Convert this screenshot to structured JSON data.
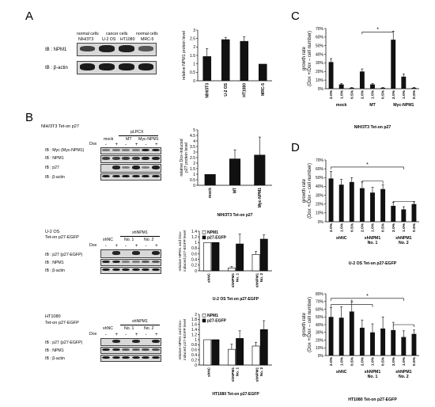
{
  "panels": {
    "A": "A",
    "B": "B",
    "C": "C",
    "D": "D"
  },
  "A": {
    "groups": [
      "normal cells",
      "cancer cells",
      "normal cells"
    ],
    "lanes": [
      "NIH/3T3",
      "U-2 OS",
      "HT1080",
      "MRC-5"
    ],
    "blots": [
      "IB : NPM1",
      "IB : β-actin"
    ],
    "band_levels": [
      [
        0.7,
        0.95,
        0.95,
        0.5
      ],
      [
        1,
        1,
        1,
        1
      ]
    ]
  },
  "B": {
    "sub1": {
      "cell": "NIH/3T3 Tet-on p27",
      "vector": "pLPCX",
      "conds": [
        "mock",
        "MT",
        "Myc-NPM1"
      ],
      "dox": "Dox",
      "pm": [
        "-",
        "+",
        "-",
        "+",
        "-",
        "+"
      ],
      "blots": [
        "IB : Myc (Myc-NPM1)",
        "IB : NPM1",
        "IB : p27",
        "IB : β-actin"
      ]
    },
    "sub2": {
      "cell": "U-2 OS",
      "cell2": "Tet-on p27-EGFP",
      "sh": "shNPM1",
      "conds": [
        "shNC",
        "No. 1",
        "No. 2"
      ],
      "dox": "Dox",
      "pm": [
        "-",
        "+",
        "-",
        "+",
        "-",
        "+"
      ],
      "blots": [
        "IB : p27 (p27-EGFP)",
        "IB : NPM1",
        "IB : β-actin"
      ]
    },
    "sub3": {
      "cell": "HT1080",
      "cell2": "Tet-on p27-EGFP",
      "sh": "shNPM1",
      "conds": [
        "shNC",
        "No. 1",
        "No. 2"
      ],
      "dox": "Dox",
      "pm": [
        "-",
        "+",
        "-",
        "+",
        "-",
        "+"
      ],
      "blots": [
        "IB : p27 (p27-EGFP)",
        "IB : NPM1",
        "IB : β-actin"
      ]
    }
  },
  "chart_data": [
    {
      "id": "A",
      "type": "bar",
      "categories": [
        "NIH/3T3",
        "U-2 OS",
        "HT1080",
        "MRC-5"
      ],
      "values": [
        1.45,
        2.45,
        2.35,
        1.0
      ],
      "errors": [
        0.45,
        0.12,
        0.25,
        0.0
      ],
      "ylabel": "relative NPM1 protein level",
      "ylim": [
        0,
        3
      ],
      "yticks": [
        "0",
        "0.5",
        "1",
        "1.5",
        "2",
        "2.5",
        "3"
      ],
      "xlabel": ""
    },
    {
      "id": "B1",
      "type": "bar",
      "categories": [
        "mock",
        "MT",
        "Myc-NPM1"
      ],
      "values": [
        1.0,
        2.4,
        2.75
      ],
      "errors": [
        0.0,
        0.8,
        1.6
      ],
      "ylabel": "relative Dox-induced p27 protein level",
      "ylim": [
        0,
        5
      ],
      "yticks": [
        "0",
        "0.5",
        "1",
        "1.5",
        "2",
        "2.5",
        "3",
        "3.5",
        "4",
        "4.5",
        "5"
      ],
      "xlabel": "NIH/3T3 Tet-on p27"
    },
    {
      "id": "B2",
      "type": "bar",
      "categories": [
        "shNC",
        "shNPM1 No. 1",
        "shNPM1 No. 2"
      ],
      "series": [
        {
          "name": "NPM1",
          "values": [
            1.0,
            0.1,
            0.58
          ],
          "errors": [
            0.0,
            0.05,
            0.1
          ]
        },
        {
          "name": "p27-EGFP",
          "values": [
            1.0,
            0.95,
            1.12
          ],
          "errors": [
            0.0,
            0.35,
            0.15
          ]
        }
      ],
      "ylabel": "relative NPM1 and Dox-induced p27-EGFP level",
      "ylim": [
        0,
        1.4
      ],
      "yticks": [
        "0",
        "0.2",
        "0.4",
        "0.6",
        "0.8",
        "1",
        "1.2",
        "1.4"
      ],
      "xlabel": "U-2 OS Tet-on p27-EGFP",
      "legend": "top-left"
    },
    {
      "id": "B3",
      "type": "bar",
      "categories": [
        "shNC",
        "shNPM1 No. 1",
        "shNPM1 No. 2"
      ],
      "series": [
        {
          "name": "NPM1",
          "values": [
            1.0,
            0.62,
            0.75
          ],
          "errors": [
            0.0,
            0.2,
            0.15
          ]
        },
        {
          "name": "p27-EGFP",
          "values": [
            1.0,
            1.05,
            1.4
          ],
          "errors": [
            0.0,
            0.3,
            0.35
          ]
        }
      ],
      "ylabel": "relative NPM1 and Dox-induced p27-EGFP level",
      "ylim": [
        0,
        2
      ],
      "yticks": [
        "0",
        "0.2",
        "0.4",
        "0.6",
        "0.8",
        "1",
        "1.2",
        "1.4",
        "1.6",
        "1.8",
        "2"
      ],
      "xlabel": "HT1080 Tet-on p27-EGFP",
      "legend": "top-left"
    },
    {
      "id": "C",
      "type": "bar",
      "groups": [
        "mock",
        "MT",
        "Myc-NPM1"
      ],
      "categories": [
        "2.0%",
        "1.0%",
        "0.5%",
        "2.0%",
        "1.0%",
        "0.5%",
        "2.0%",
        "1.0%",
        "0.5%"
      ],
      "values": [
        31,
        5,
        1,
        20,
        5,
        1,
        57,
        14,
        1
      ],
      "errors": [
        4,
        1,
        0.5,
        3,
        1,
        0.5,
        10,
        3,
        0.5
      ],
      "ylabel": "growth rate (Dox +/Dox – cell number)",
      "ylim": [
        0,
        70
      ],
      "yticks": [
        "0%",
        "10%",
        "20%",
        "30%",
        "40%",
        "50%",
        "60%",
        "70%"
      ],
      "xlabel": "NIH/3T3 Tet-on p27",
      "significance": "*"
    },
    {
      "id": "D1",
      "type": "bar",
      "groups": [
        "shNC",
        "shNPM1 No. 1",
        "shNPM1 No. 2"
      ],
      "categories": [
        "2.0%",
        "1.0%",
        "0.5%",
        "2.0%",
        "1.0%",
        "0.5%",
        "2.0%",
        "1.0%",
        "0.5%"
      ],
      "values": [
        49,
        42,
        45,
        38,
        33,
        37,
        18,
        14,
        20
      ],
      "errors": [
        8,
        6,
        5,
        7,
        6,
        5,
        4,
        3,
        3
      ],
      "ylabel": "growth rate (Dox +/Dox – cell number)",
      "ylim": [
        0,
        70
      ],
      "yticks": [
        "0%",
        "10%",
        "20%",
        "30%",
        "40%",
        "50%",
        "60%",
        "70%"
      ],
      "xlabel": "U-2 OS Tet-on p27-EGFP",
      "significance": "*"
    },
    {
      "id": "D2",
      "type": "bar",
      "groups": [
        "shNC",
        "shNPM1 No. 1",
        "shNPM1 No. 2"
      ],
      "categories": [
        "2.0%",
        "1.0%",
        "0.5%",
        "2.0%",
        "1.0%",
        "0.5%",
        "2.0%",
        "1.0%",
        "0.5%"
      ],
      "values": [
        50,
        49,
        57,
        36,
        30,
        35,
        33,
        24,
        28
      ],
      "errors": [
        12,
        14,
        12,
        10,
        11,
        15,
        10,
        8,
        5
      ],
      "ylabel": "growth rate (Dox +/Dox – cell number)",
      "ylim": [
        0,
        80
      ],
      "yticks": [
        "0%",
        "10%",
        "20%",
        "30%",
        "40%",
        "50%",
        "60%",
        "70%",
        "80%"
      ],
      "xlabel": "HT1080 Tet-on p27-EGFP",
      "significance": "*"
    }
  ]
}
